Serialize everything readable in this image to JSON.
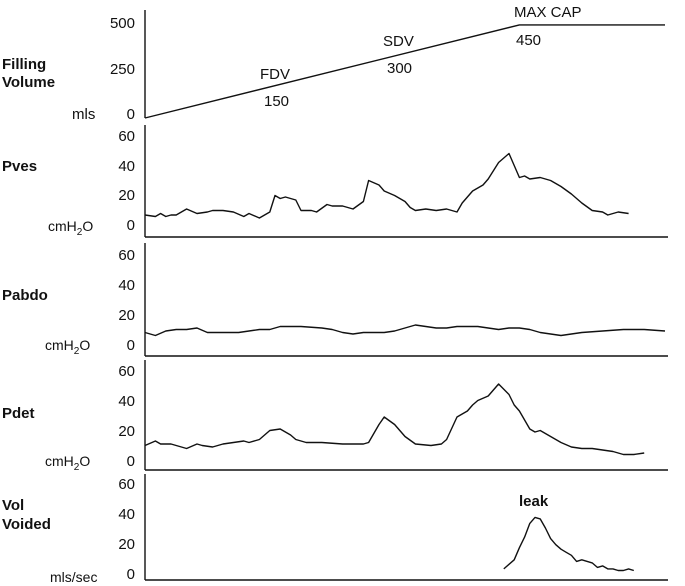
{
  "figure_type": "urodynamic cystometrogram",
  "chart_data": [
    {
      "type": "line",
      "name": "filling-volume",
      "ylabel": "Filling Volume",
      "unit": "mls",
      "yticks": [
        "500",
        "250",
        "0"
      ],
      "ylim": [
        0,
        500
      ],
      "annotations": [
        {
          "label": "FDV",
          "value": "150"
        },
        {
          "label": "SDV",
          "value": "300"
        },
        {
          "label": "MAX CAP",
          "value": "450"
        }
      ],
      "x": [
        0,
        0.72,
        0.87,
        1.0
      ],
      "values": [
        0,
        470,
        470,
        470
      ]
    },
    {
      "type": "line",
      "name": "pves",
      "ylabel": "Pves",
      "unit_main": "cmH",
      "unit_sub": "2",
      "unit_end": "O",
      "yticks": [
        "60",
        "40",
        "20",
        "0"
      ],
      "ylim": [
        0,
        60
      ],
      "x": [
        0,
        0.02,
        0.03,
        0.04,
        0.05,
        0.06,
        0.08,
        0.1,
        0.12,
        0.13,
        0.15,
        0.17,
        0.19,
        0.2,
        0.22,
        0.24,
        0.25,
        0.26,
        0.27,
        0.29,
        0.3,
        0.32,
        0.33,
        0.35,
        0.36,
        0.38,
        0.4,
        0.42,
        0.43,
        0.45,
        0.46,
        0.48,
        0.49,
        0.5,
        0.51,
        0.52,
        0.54,
        0.56,
        0.58,
        0.6,
        0.61,
        0.63,
        0.65,
        0.66,
        0.68,
        0.7,
        0.71,
        0.72,
        0.73,
        0.74,
        0.76,
        0.78,
        0.8,
        0.82,
        0.84,
        0.86,
        0.88,
        0.89,
        0.91,
        0.93
      ],
      "values": [
        8,
        7,
        9,
        7,
        8,
        8,
        12,
        9,
        10,
        11,
        11,
        10,
        7,
        9,
        6,
        10,
        21,
        19,
        20,
        18,
        11,
        11,
        10,
        15,
        14,
        14,
        12,
        17,
        31,
        28,
        24,
        21,
        19,
        17,
        13,
        11,
        12,
        11,
        12,
        10,
        16,
        24,
        28,
        32,
        43,
        49,
        41,
        33,
        34,
        32,
        33,
        31,
        27,
        22,
        16,
        11,
        10,
        8,
        10,
        9
      ]
    },
    {
      "type": "line",
      "name": "pabdo",
      "ylabel": "Pabdo",
      "unit_main": "cmH",
      "unit_sub": "2",
      "unit_end": "O",
      "yticks": [
        "60",
        "40",
        "20",
        "0"
      ],
      "ylim": [
        0,
        60
      ],
      "x": [
        0,
        0.02,
        0.04,
        0.06,
        0.08,
        0.1,
        0.12,
        0.14,
        0.16,
        0.18,
        0.2,
        0.22,
        0.24,
        0.26,
        0.3,
        0.34,
        0.36,
        0.38,
        0.4,
        0.42,
        0.44,
        0.46,
        0.48,
        0.5,
        0.52,
        0.54,
        0.56,
        0.58,
        0.6,
        0.62,
        0.64,
        0.66,
        0.68,
        0.7,
        0.72,
        0.74,
        0.76,
        0.78,
        0.8,
        0.84,
        0.88,
        0.92,
        0.96,
        1.0
      ],
      "values": [
        9,
        7,
        10,
        11,
        11,
        12,
        9,
        9,
        9,
        9,
        10,
        11,
        11,
        13,
        13,
        12,
        11,
        9,
        8,
        9,
        9,
        9,
        10,
        12,
        14,
        13,
        12,
        12,
        13,
        13,
        13,
        12,
        11,
        12,
        12,
        11,
        9,
        8,
        7,
        9,
        10,
        11,
        11,
        10
      ]
    },
    {
      "type": "line",
      "name": "pdet",
      "ylabel": "Pdet",
      "unit_main": "cmH",
      "unit_sub": "2",
      "unit_end": "O",
      "yticks": [
        "60",
        "40",
        "20",
        "0"
      ],
      "ylim": [
        0,
        60
      ],
      "x": [
        0,
        0.02,
        0.03,
        0.05,
        0.07,
        0.08,
        0.1,
        0.11,
        0.13,
        0.15,
        0.17,
        0.19,
        0.2,
        0.22,
        0.24,
        0.26,
        0.28,
        0.29,
        0.31,
        0.34,
        0.38,
        0.42,
        0.43,
        0.45,
        0.46,
        0.48,
        0.5,
        0.52,
        0.55,
        0.57,
        0.58,
        0.6,
        0.62,
        0.63,
        0.64,
        0.66,
        0.68,
        0.7,
        0.71,
        0.72,
        0.74,
        0.75,
        0.76,
        0.78,
        0.8,
        0.82,
        0.84,
        0.86,
        0.88,
        0.9,
        0.92,
        0.94,
        0.96
      ],
      "values": [
        11,
        14,
        12,
        12,
        10,
        9,
        12,
        11,
        10,
        12,
        13,
        14,
        13,
        15,
        21,
        22,
        18,
        15,
        13,
        13,
        12,
        12,
        13,
        25,
        30,
        25,
        17,
        12,
        11,
        12,
        15,
        30,
        34,
        38,
        41,
        44,
        52,
        45,
        38,
        34,
        22,
        20,
        21,
        17,
        13,
        10,
        9,
        9,
        8,
        7,
        5,
        5,
        6
      ]
    },
    {
      "type": "line",
      "name": "vol-voided",
      "ylabel": "Vol Voided",
      "unit": "mls/sec",
      "yticks": [
        "60",
        "40",
        "20",
        "0"
      ],
      "ylim": [
        0,
        60
      ],
      "annotation": "leak",
      "x": [
        0.69,
        0.71,
        0.72,
        0.73,
        0.74,
        0.75,
        0.76,
        0.77,
        0.78,
        0.79,
        0.8,
        0.81,
        0.82,
        0.83,
        0.84,
        0.86,
        0.87,
        0.88,
        0.89,
        0.9,
        0.91,
        0.92,
        0.93,
        0.94
      ],
      "values": [
        4,
        10,
        18,
        25,
        34,
        38,
        37,
        31,
        24,
        20,
        17,
        15,
        13,
        9,
        10,
        8,
        5,
        6,
        4,
        4,
        3,
        3,
        4,
        3
      ]
    }
  ]
}
